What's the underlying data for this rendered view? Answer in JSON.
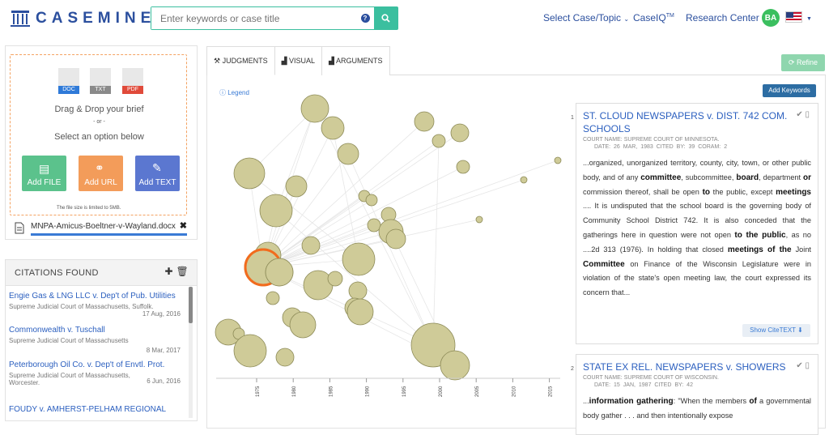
{
  "header": {
    "brand": "CASEMINE",
    "search_placeholder": "Enter keywords or case title",
    "nav": {
      "select_case": "Select Case/Topic",
      "caseiq": "CaseIQ",
      "caseiq_tm": "TM",
      "research": "Research Center"
    },
    "user_initials": "BA"
  },
  "upload": {
    "file_types": [
      "DOC",
      "TXT",
      "PDF"
    ],
    "drag_text": "Drag & Drop your brief",
    "or_text": "- or -",
    "select_text": "Select an option below",
    "add_file": "Add FILE",
    "add_url": "Add URL",
    "add_text": "Add TEXT",
    "limit_text": "The file size is limited to 5MB.",
    "file_name": "MNPA-Amicus-Boeltner-v-Wayland.docx"
  },
  "citations": {
    "header": "CITATIONS FOUND",
    "items": [
      {
        "title": "Engie Gas & LNG LLC v. Dep't of Pub. Utilities",
        "court": "Supreme Judicial Court of Massachusetts, Suffolk.",
        "date": "17 Aug, 2016"
      },
      {
        "title": "Commonwealth v. Tuschall",
        "court": "Supreme Judicial Court of Massachusetts",
        "date": "8 Mar, 2017"
      },
      {
        "title": "Peterborough Oil Co. v. Dep't of Envtl. Prot.",
        "court": "Supreme Judicial Court of Massachusetts, Worcester.",
        "date": "6 Jun, 2016"
      },
      {
        "title": "FOUDY v. AMHERST-PELHAM REGIONAL",
        "court": "",
        "date": ""
      }
    ]
  },
  "tabs": [
    "JUDGMENTS",
    "VISUAL",
    "ARGUMENTS"
  ],
  "refine_label": "Refine",
  "add_keywords_label": "Add Keywords",
  "legend_label": "Legend",
  "chart_data": {
    "type": "scatter",
    "x_tick_labels": [
      "1975",
      "1980",
      "1985",
      "1990",
      "1995",
      "2000",
      "2005",
      "2010",
      "2015"
    ]
  },
  "cards": [
    {
      "number": "1",
      "title": "ST. CLOUD NEWSPAPERS v. DIST. 742 COM. SCHOOLS",
      "court": "COURT NAME: SUPREME COURT OF MINNESOTA.",
      "meta": "DATE: 26 MAR, 1983   CITED BY: 39   CORAM: 2",
      "show_cite": "Show CiteTEXT",
      "body": [
        {
          "t": "...organized, unorganized territory, county, city, town, or other public body, and of any ",
          "b": false
        },
        {
          "t": "committee",
          "b": true
        },
        {
          "t": ", subcommittee, ",
          "b": false
        },
        {
          "t": "board",
          "b": true
        },
        {
          "t": ", department ",
          "b": false
        },
        {
          "t": "or",
          "b": true
        },
        {
          "t": " commission thereof, shall be open ",
          "b": false
        },
        {
          "t": "to",
          "b": true
        },
        {
          "t": " the public, except ",
          "b": false
        },
        {
          "t": "meetings",
          "b": true
        },
        {
          "t": " .... It is undisputed that the school board is the governing body of Community School District 742. It is also conceded that the gatherings here in question were not open ",
          "b": false
        },
        {
          "t": "to the public",
          "b": true
        },
        {
          "t": ", as no ....2d 313 (1976). In holding that closed ",
          "b": false
        },
        {
          "t": "meetings of the",
          "b": true
        },
        {
          "t": " Joint ",
          "b": false
        },
        {
          "t": "Committee",
          "b": true
        },
        {
          "t": " on Finance of the Wisconsin Legislature were in violation of the state's open meeting law, the court expressed its concern that...",
          "b": false
        }
      ]
    },
    {
      "number": "2",
      "title": "STATE EX REL. NEWSPAPERS v. SHOWERS",
      "court": "COURT NAME: SUPREME COURT OF WISCONSIN.",
      "meta": "DATE: 15 JAN, 1987   CITED BY: 42",
      "body": [
        {
          "t": "...",
          "b": false
        },
        {
          "t": "information gathering",
          "b": true
        },
        {
          "t": ": \"When the members ",
          "b": false
        },
        {
          "t": "of",
          "b": true
        },
        {
          "t": " a governmental body gather . . . and then intentionally expose",
          "b": false
        }
      ]
    }
  ],
  "colors": {
    "accent": "#3bbf9f",
    "brand": "#2b4f9e",
    "bubble": "#cfcb98",
    "highlight": "#f26b1d"
  }
}
